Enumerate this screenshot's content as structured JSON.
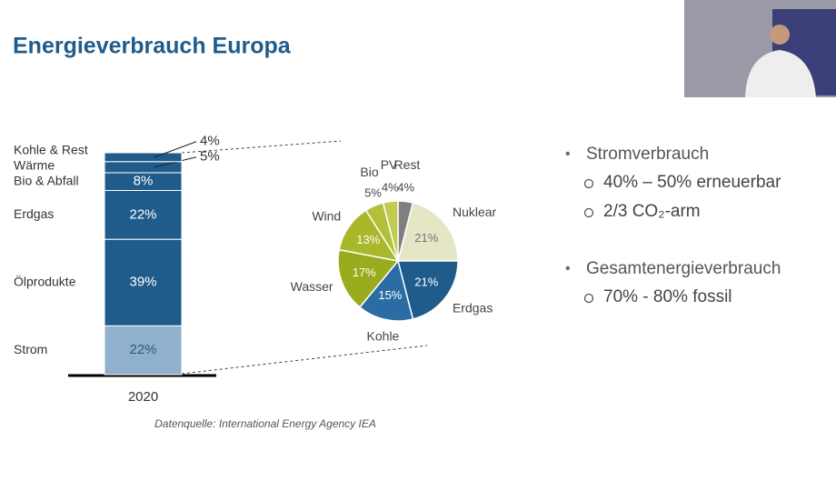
{
  "title": "Energieverbrauch Europa",
  "chart_data": [
    {
      "type": "stacked-bar",
      "categories": [
        "2020"
      ],
      "series": [
        {
          "name": "Strom",
          "color": "#8fb1cd",
          "values": [
            22
          ],
          "value_labels": [
            "22%"
          ]
        },
        {
          "name": "Ölprodukte",
          "color": "#1f5c8c",
          "values": [
            39
          ],
          "value_labels": [
            "39%"
          ]
        },
        {
          "name": "Erdgas",
          "color": "#1f5c8c",
          "values": [
            22
          ],
          "value_labels": [
            "22%"
          ]
        },
        {
          "name": "Bio & Abfall",
          "color": "#1f5c8c",
          "values": [
            8
          ],
          "value_labels": [
            "8%"
          ]
        },
        {
          "name": "Wärme",
          "color": "#1f5c8c",
          "values": [
            5
          ],
          "value_labels": [
            "5%"
          ]
        },
        {
          "name": "Kohle & Rest",
          "color": "#1f5c8c",
          "values": [
            4
          ],
          "value_labels": [
            "4%"
          ]
        }
      ]
    },
    {
      "type": "pie",
      "categories": [
        "Rest",
        "Nuklear",
        "Erdgas",
        "Kohle",
        "Wasser",
        "Wind",
        "Bio",
        "PV"
      ],
      "values": [
        4,
        21,
        21,
        15,
        17,
        13,
        5,
        4
      ],
      "value_labels": [
        "4%",
        "21%",
        "21%",
        "15%",
        "17%",
        "13%",
        "5%",
        "4%"
      ],
      "colors": [
        "#7f7f7f",
        "#e4e6c6",
        "#1f5c8c",
        "#2a6ca3",
        "#9aab1e",
        "#a9b82a",
        "#b3c03a",
        "#c0cb50"
      ]
    }
  ],
  "source": "Datenquelle: International Energy Agency IEA",
  "bullets": [
    {
      "text": "Stromverbrauch",
      "sub": [
        "40% – 50% erneuerbar",
        "2/3 CO₂-arm"
      ]
    },
    {
      "text": "Gesamtenergieverbrauch",
      "sub": [
        "70% - 80% fossil"
      ]
    }
  ]
}
